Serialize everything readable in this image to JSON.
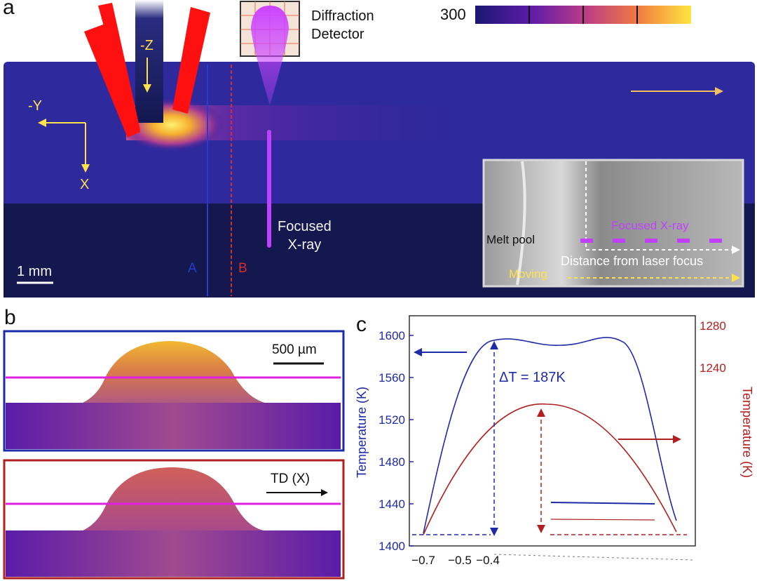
{
  "panel_a": {
    "label": "a",
    "scale_top_value": "300",
    "detector_label": "Diffraction\nDetector",
    "axis_z": "-Z",
    "axis_y": "-Y",
    "axis_x": "X",
    "focused_xray": "Focused\nX-ray",
    "scale_bar": "1 mm",
    "line_a": "A",
    "line_b": "B",
    "inset": {
      "melt_pool": "Melt pool",
      "focused_xray": "Focused X-ray",
      "distance": "Distance from laser focus",
      "moving": "Moving"
    },
    "colors": {
      "line_a": "#2b3bd0",
      "line_b": "#d0302b",
      "beam": "#c040ff",
      "laser": "#ff1010"
    }
  },
  "panel_b": {
    "label": "b",
    "scale_bar": "500 µm",
    "td_label": "TD (X)",
    "colors": {
      "frame_top": "#1f2aa8",
      "frame_bottom": "#b02020"
    }
  },
  "panel_c": {
    "label": "c",
    "left_axis_label": "Temperature (K)",
    "right_axis_label": "Temperature (K)",
    "annotation": "ΔT = 187K",
    "left_ticks": [
      "1400",
      "1440",
      "1480",
      "1520",
      "1560",
      "1600"
    ],
    "right_ticks": [
      "1240",
      "1280"
    ],
    "x_ticks": [
      "−0.7",
      "−0.5",
      "−0.4"
    ],
    "colors": {
      "blue": "#1f2aa8",
      "red": "#b02020"
    }
  }
}
